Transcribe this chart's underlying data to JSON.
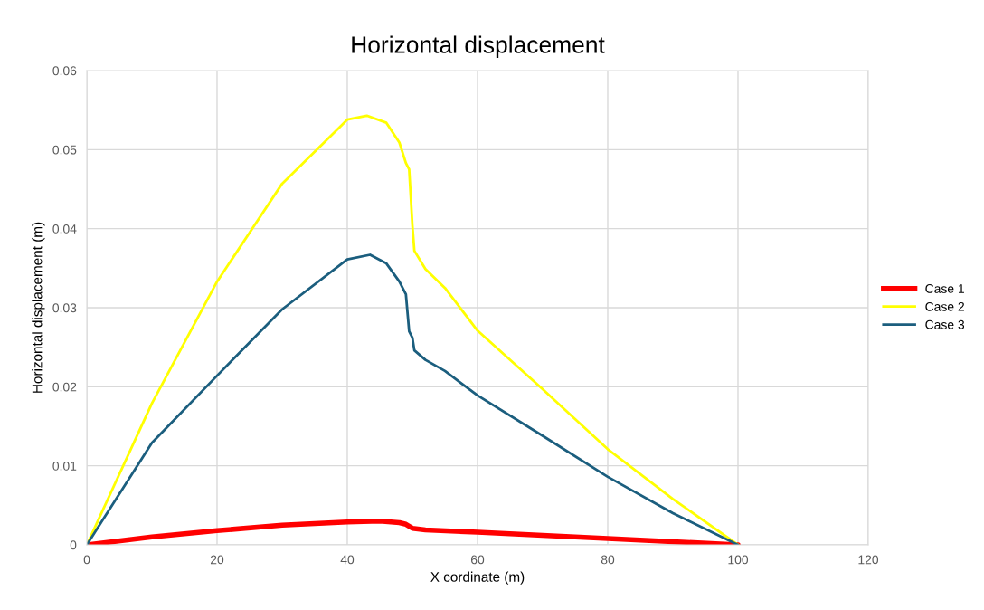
{
  "chart_data": {
    "type": "line",
    "title": "Horizontal displacement",
    "xlabel": "X cordinate (m)",
    "ylabel": "Horizontal displacement (m)",
    "xlim": [
      0,
      120
    ],
    "xticks": [
      0,
      20,
      40,
      60,
      80,
      100,
      120
    ],
    "ylim": [
      0,
      0.06
    ],
    "yticks": [
      0,
      0.01,
      0.02,
      0.03,
      0.04,
      0.05,
      0.06
    ],
    "grid": true,
    "legend": "right",
    "marker": "none",
    "line_style": "solid",
    "series": [
      {
        "name": "Case 1",
        "color": "#ff0000",
        "x": [
          0,
          10,
          20,
          30,
          40,
          45,
          48,
          49,
          50,
          52,
          60,
          70,
          80,
          90,
          100
        ],
        "values": [
          0,
          0.001,
          0.0018,
          0.0025,
          0.0029,
          0.003,
          0.0028,
          0.0026,
          0.0021,
          0.0019,
          0.0016,
          0.0012,
          0.0008,
          0.0004,
          0
        ]
      },
      {
        "name": "Case 2",
        "color": "#ffff00",
        "x": [
          0,
          10,
          20,
          30,
          40,
          43,
          46,
          48,
          49,
          49.5,
          50,
          50.3,
          52,
          55,
          60,
          70,
          80,
          90,
          100
        ],
        "values": [
          0,
          0.0179,
          0.0333,
          0.0457,
          0.0538,
          0.0543,
          0.0534,
          0.0509,
          0.0483,
          0.0475,
          0.0404,
          0.0372,
          0.0349,
          0.0325,
          0.0271,
          0.0197,
          0.0121,
          0.0058,
          0
        ]
      },
      {
        "name": "Case 3",
        "color": "#1b5e7e",
        "x": [
          0,
          10,
          20,
          30,
          40,
          43.5,
          46,
          48,
          49,
          49.5,
          50,
          50.3,
          52,
          55,
          60,
          70,
          80,
          90,
          100
        ],
        "values": [
          0,
          0.0129,
          0.0214,
          0.0298,
          0.0361,
          0.0367,
          0.0356,
          0.0333,
          0.0317,
          0.027,
          0.0262,
          0.0246,
          0.0234,
          0.022,
          0.0189,
          0.0138,
          0.0086,
          0.004,
          0
        ]
      }
    ]
  }
}
